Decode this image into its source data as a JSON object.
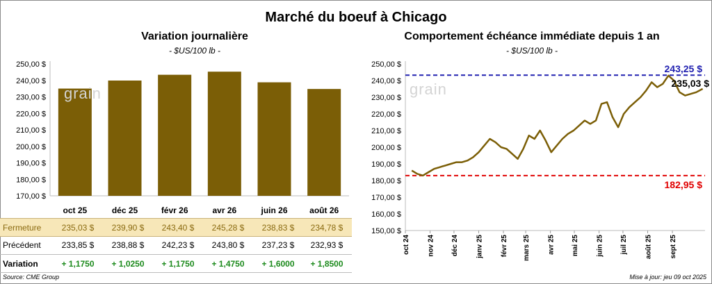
{
  "title": "Marché du boeuf à Chicago",
  "left_panel": {
    "subtitle": "Variation journalière",
    "unit": "- $US/100 lb -",
    "table": {
      "rows": [
        {
          "label": "Fermeture",
          "values": [
            "235,03 $",
            "239,90 $",
            "243,40 $",
            "245,28 $",
            "238,83 $",
            "234,78 $"
          ]
        },
        {
          "label": "Précédent",
          "values": [
            "233,85 $",
            "238,88 $",
            "242,23 $",
            "243,80 $",
            "237,23 $",
            "232,93 $"
          ]
        },
        {
          "label": "Variation",
          "values": [
            "+ 1,1750",
            "+ 1,0250",
            "+ 1,1750",
            "+ 1,4750",
            "+ 1,6000",
            "+ 1,8500"
          ]
        }
      ]
    }
  },
  "right_panel": {
    "subtitle": "Comportement échéance immédiate depuis 1 an",
    "unit": "- $US/100 lb -"
  },
  "watermark": "grain",
  "footer": {
    "source": "Source: CME Group",
    "updated": "Mise à jour: jeu 09 oct 2025"
  },
  "colors": {
    "bar": "#7b5e06",
    "line": "#7b5e06",
    "high_line": "#2020b0",
    "low_line": "#e00000",
    "close_row_bg": "#f7e7b8",
    "variation_text": "#1c8a1c"
  },
  "chart_data": [
    {
      "type": "bar",
      "categories": [
        "oct 25",
        "déc 25",
        "févr 26",
        "avr 26",
        "juin 26",
        "août 26"
      ],
      "values": [
        235.03,
        239.9,
        243.4,
        245.28,
        238.83,
        234.78
      ],
      "ylim": [
        170,
        250
      ],
      "yticks": [
        "170,00 $",
        "180,00 $",
        "190,00 $",
        "200,00 $",
        "210,00 $",
        "220,00 $",
        "230,00 $",
        "240,00 $",
        "250,00 $"
      ],
      "grid": false
    },
    {
      "type": "line",
      "ylim": [
        150,
        250
      ],
      "yticks": [
        "150,00 $",
        "160,00 $",
        "170,00 $",
        "180,00 $",
        "190,00 $",
        "200,00 $",
        "210,00 $",
        "220,00 $",
        "230,00 $",
        "240,00 $",
        "250,00 $"
      ],
      "xticks": [
        "oct 24",
        "nov 24",
        "déc 24",
        "janv 25",
        "févr 25",
        "mars 25",
        "avr 25",
        "mai 25",
        "juin 25",
        "juil 25",
        "août 25",
        "sept 25"
      ],
      "x": [
        "2024-10-09",
        "2024-10-16",
        "2024-10-23",
        "2024-10-30",
        "2024-11-06",
        "2024-11-13",
        "2024-11-20",
        "2024-11-27",
        "2024-12-04",
        "2024-12-11",
        "2024-12-18",
        "2024-12-25",
        "2025-01-01",
        "2025-01-08",
        "2025-01-15",
        "2025-01-22",
        "2025-01-29",
        "2025-02-05",
        "2025-02-12",
        "2025-02-19",
        "2025-02-26",
        "2025-03-05",
        "2025-03-12",
        "2025-03-19",
        "2025-03-26",
        "2025-04-02",
        "2025-04-09",
        "2025-04-16",
        "2025-04-23",
        "2025-04-30",
        "2025-05-07",
        "2025-05-14",
        "2025-05-21",
        "2025-05-28",
        "2025-06-04",
        "2025-06-11",
        "2025-06-18",
        "2025-06-25",
        "2025-07-02",
        "2025-07-09",
        "2025-07-16",
        "2025-07-23",
        "2025-07-30",
        "2025-08-06",
        "2025-08-13",
        "2025-08-20",
        "2025-08-27",
        "2025-09-03",
        "2025-09-10",
        "2025-09-17",
        "2025-09-24",
        "2025-10-01",
        "2025-10-09"
      ],
      "series": [
        {
          "values": [
            186,
            184,
            183,
            185,
            187,
            188,
            189,
            190,
            191,
            191,
            192,
            194,
            197,
            201,
            205,
            203,
            200,
            199,
            196,
            193,
            199,
            207,
            205,
            210,
            204,
            197,
            201,
            205,
            208,
            210,
            213,
            216,
            214,
            216,
            226,
            227,
            218,
            212,
            220,
            224,
            227,
            230,
            234,
            239,
            236,
            238,
            243,
            240,
            233,
            231,
            232,
            233,
            235.03
          ]
        }
      ],
      "annotations": [
        {
          "label": "243,25 $",
          "value": 243.25,
          "style": "dashed",
          "color": "#2020b0"
        },
        {
          "label": "182,95 $",
          "value": 182.95,
          "style": "dashed",
          "color": "#e00000"
        },
        {
          "label": "235,03 $",
          "value": 235.03
        }
      ],
      "grid": false
    }
  ]
}
